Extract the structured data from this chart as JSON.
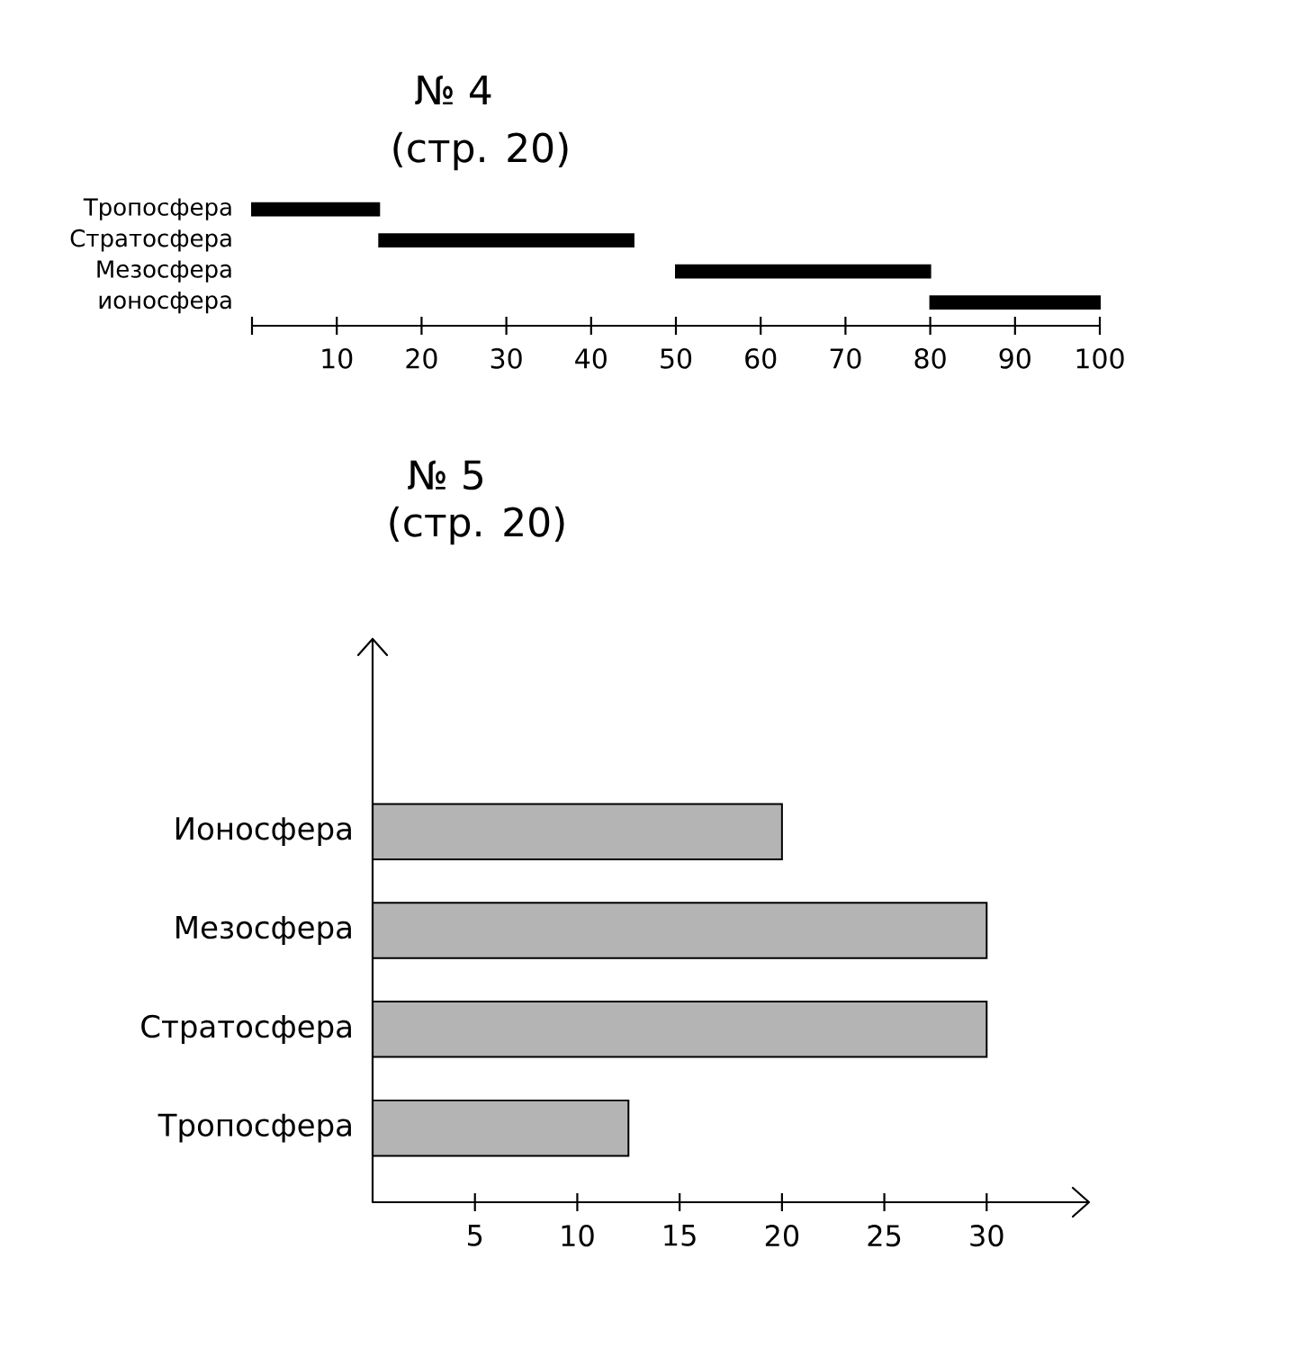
{
  "chart_data": [
    {
      "type": "bar",
      "orientation": "horizontal",
      "title": "№ 4",
      "subtitle": "(стр. 20)",
      "categories": [
        "Тропосфера",
        "Стратосфера",
        "Мезосфера",
        "ионосфера"
      ],
      "base": [
        0,
        15,
        50,
        80
      ],
      "values": [
        15,
        30,
        30,
        20
      ],
      "color": "#000000",
      "xlim": [
        0,
        100
      ],
      "xticks": [
        {
          "value": 0,
          "label": null
        },
        10,
        20,
        30,
        40,
        50,
        60,
        70,
        80,
        90,
        100
      ]
    },
    {
      "type": "bar",
      "orientation": "horizontal",
      "title": "№ 5",
      "subtitle": "(стр. 20)",
      "categories": [
        "Ионосфера",
        "Мезосфера",
        "Стратосфера",
        "Тропосфера"
      ],
      "values": [
        20,
        30,
        30,
        12.5
      ],
      "color": "#b4b4b4",
      "xlim": [
        0,
        35
      ],
      "xticks": [
        5,
        10,
        15,
        20,
        25,
        30
      ]
    }
  ]
}
